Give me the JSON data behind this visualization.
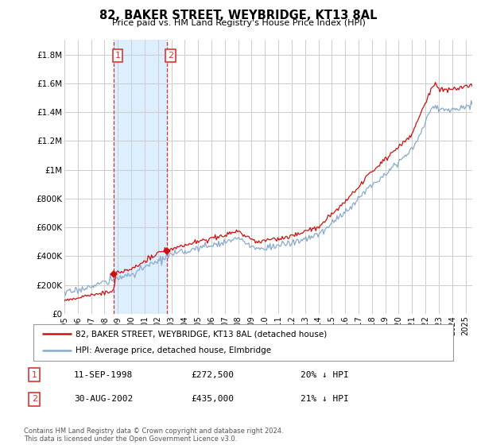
{
  "title": "82, BAKER STREET, WEYBRIDGE, KT13 8AL",
  "subtitle": "Price paid vs. HM Land Registry's House Price Index (HPI)",
  "ylabel_ticks": [
    "£0",
    "£200K",
    "£400K",
    "£600K",
    "£800K",
    "£1M",
    "£1.2M",
    "£1.4M",
    "£1.6M",
    "£1.8M"
  ],
  "ytick_vals": [
    0,
    200000,
    400000,
    600000,
    800000,
    1000000,
    1200000,
    1400000,
    1600000,
    1800000
  ],
  "ylim": [
    0,
    1900000
  ],
  "xlim_start": 1995.0,
  "xlim_end": 2025.5,
  "sale1_x": 1998.69,
  "sale1_y": 272500,
  "sale1_label": "1",
  "sale1_date": "11-SEP-1998",
  "sale1_price": "£272,500",
  "sale1_hpi": "20% ↓ HPI",
  "sale2_x": 2002.66,
  "sale2_y": 435000,
  "sale2_label": "2",
  "sale2_date": "30-AUG-2002",
  "sale2_price": "£435,000",
  "sale2_hpi": "21% ↓ HPI",
  "shade_color": "#ddeeff",
  "vline_color": "#dd3333",
  "red_line_color": "#cc1111",
  "blue_line_color": "#88aacc",
  "legend_label_red": "82, BAKER STREET, WEYBRIDGE, KT13 8AL (detached house)",
  "legend_label_blue": "HPI: Average price, detached house, Elmbridge",
  "footer": "Contains HM Land Registry data © Crown copyright and database right 2024.\nThis data is licensed under the Open Government Licence v3.0.",
  "background_color": "#ffffff",
  "grid_color": "#cccccc",
  "xtick_years": [
    1995,
    1996,
    1997,
    1998,
    1999,
    2000,
    2001,
    2002,
    2003,
    2004,
    2005,
    2006,
    2007,
    2008,
    2009,
    2010,
    2011,
    2012,
    2013,
    2014,
    2015,
    2016,
    2017,
    2018,
    2019,
    2020,
    2021,
    2022,
    2023,
    2024,
    2025
  ]
}
